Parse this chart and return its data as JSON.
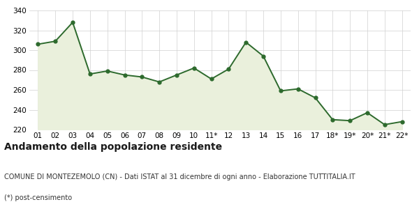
{
  "x_labels": [
    "01",
    "02",
    "03",
    "04",
    "05",
    "06",
    "07",
    "08",
    "09",
    "10",
    "11*",
    "12",
    "13",
    "14",
    "15",
    "16",
    "17",
    "18*",
    "19*",
    "20*",
    "21*",
    "22*"
  ],
  "y_values": [
    306,
    309,
    328,
    276,
    279,
    275,
    273,
    268,
    275,
    282,
    271,
    281,
    308,
    294,
    259,
    261,
    252,
    230,
    229,
    237,
    225,
    228
  ],
  "ylim": [
    220,
    340
  ],
  "yticks": [
    220,
    240,
    260,
    280,
    300,
    320,
    340
  ],
  "line_color": "#2d6a2d",
  "fill_color": "#eaf0dc",
  "marker_size": 3.5,
  "line_width": 1.4,
  "title1": "Andamento della popolazione residente",
  "title2": "COMUNE DI MONTEZEMOLO (CN) - Dati ISTAT al 31 dicembre di ogni anno - Elaborazione TUTTITALIA.IT",
  "title3": "(*) post-censimento",
  "bg_color": "#ffffff",
  "grid_color": "#d0d0d0",
  "tick_fontsize": 7.5,
  "title1_fontsize": 10,
  "title2_fontsize": 7,
  "title3_fontsize": 7
}
